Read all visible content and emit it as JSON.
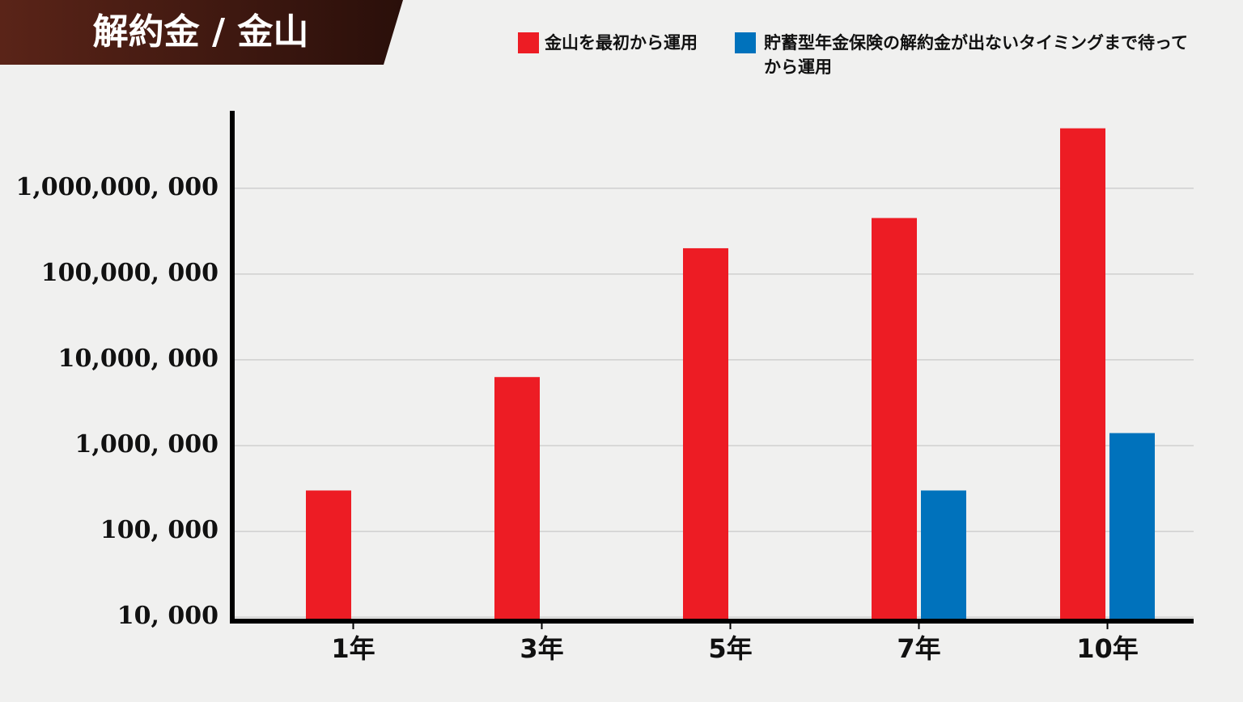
{
  "chart_data": {
    "type": "bar",
    "title": "解約金 / 金山",
    "categories": [
      "1年",
      "3年",
      "5年",
      "7年",
      "10年"
    ],
    "series": [
      {
        "name": "金山を最初から運用",
        "color": "#ed1c24",
        "values": [
          300000,
          6300000,
          200000000,
          450000000,
          5000000000
        ]
      },
      {
        "name": "貯蓄型年金保険の解約金が出ないタイミングまで待ってから運用",
        "color": "#0072bc",
        "values": [
          null,
          null,
          null,
          300000,
          1400000
        ]
      }
    ],
    "log_scale": true,
    "ylim": [
      9000,
      8000000000
    ],
    "yticks": [
      {
        "value": 10000,
        "label": "10, 000"
      },
      {
        "value": 100000,
        "label": "100, 000"
      },
      {
        "value": 1000000,
        "label": "1,000, 000"
      },
      {
        "value": 10000000,
        "label": "10,000, 000"
      },
      {
        "value": 100000000,
        "label": "100,000, 000"
      },
      {
        "value": 1000000000,
        "label": "1,000,000, 000"
      }
    ],
    "grid": true
  }
}
